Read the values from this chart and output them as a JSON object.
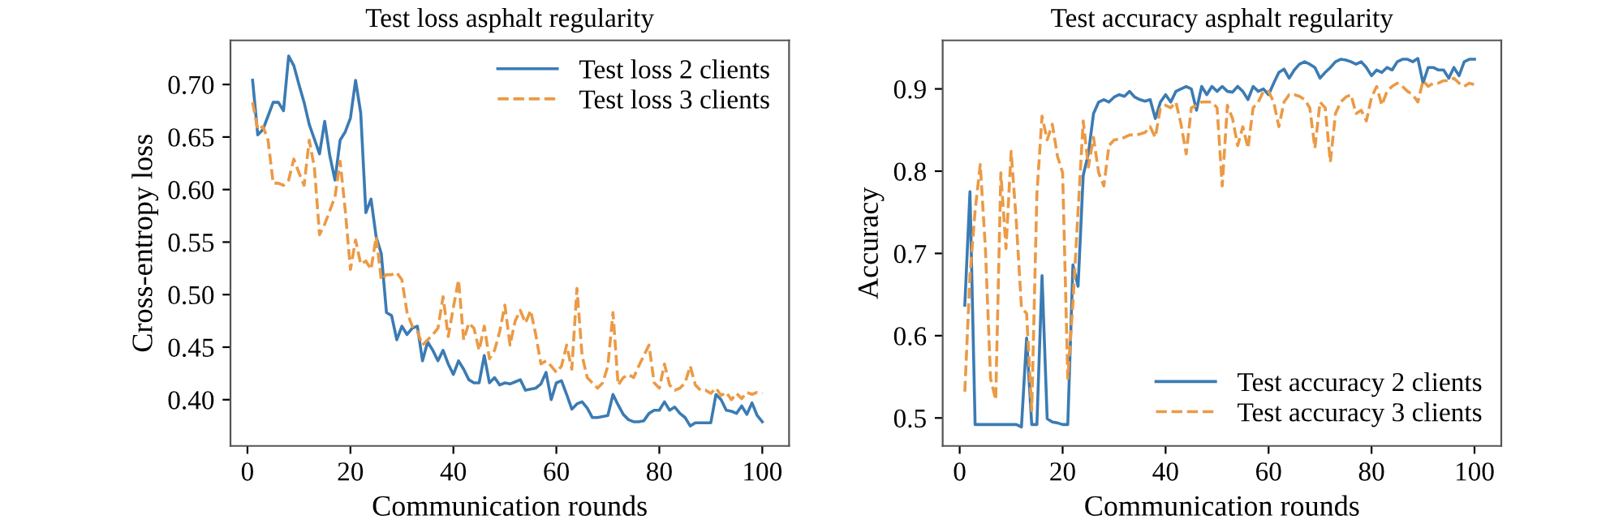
{
  "chart_data": [
    {
      "type": "line",
      "title": "Test loss asphalt regularity",
      "xlabel": "Communication rounds",
      "ylabel": "Cross-entropy loss",
      "x": [
        1,
        2,
        3,
        4,
        5,
        6,
        7,
        8,
        9,
        10,
        11,
        12,
        13,
        14,
        15,
        16,
        17,
        18,
        19,
        20,
        21,
        22,
        23,
        24,
        25,
        26,
        27,
        28,
        29,
        30,
        31,
        32,
        33,
        34,
        35,
        36,
        37,
        38,
        39,
        40,
        41,
        42,
        43,
        44,
        45,
        46,
        47,
        48,
        49,
        50,
        51,
        52,
        53,
        54,
        55,
        56,
        57,
        58,
        59,
        60,
        61,
        62,
        63,
        64,
        65,
        66,
        67,
        68,
        69,
        70,
        71,
        72,
        73,
        74,
        75,
        76,
        77,
        78,
        79,
        80,
        81,
        82,
        83,
        84,
        85,
        86,
        87,
        88,
        89,
        90,
        91,
        92,
        93,
        94,
        95,
        96,
        97,
        98,
        99,
        100
      ],
      "xlim": [
        -3.3,
        105.2
      ],
      "xticks": [
        0,
        20,
        40,
        60,
        80,
        100
      ],
      "ylim": [
        0.356,
        0.742
      ],
      "yticks": [
        {
          "value": 0.4,
          "label": "0.40"
        },
        {
          "value": 0.45,
          "label": "0.45"
        },
        {
          "value": 0.5,
          "label": "0.50"
        },
        {
          "value": 0.55,
          "label": "0.55"
        },
        {
          "value": 0.6,
          "label": "0.60"
        },
        {
          "value": 0.65,
          "label": "0.65"
        },
        {
          "value": 0.7,
          "label": "0.70"
        }
      ],
      "legend": "top right",
      "grid": false,
      "series": [
        {
          "name": "Test loss 2 clients",
          "color": "#3b7bb3",
          "line_style": "solid",
          "values": [
            0.704,
            0.652,
            0.657,
            0.67,
            0.683,
            0.683,
            0.675,
            0.727,
            0.718,
            0.7,
            0.683,
            0.662,
            0.648,
            0.634,
            0.665,
            0.632,
            0.609,
            0.647,
            0.655,
            0.668,
            0.704,
            0.673,
            0.578,
            0.591,
            0.555,
            0.539,
            0.483,
            0.48,
            0.457,
            0.47,
            0.462,
            0.468,
            0.47,
            0.437,
            0.455,
            0.447,
            0.437,
            0.447,
            0.434,
            0.424,
            0.437,
            0.429,
            0.419,
            0.416,
            0.416,
            0.442,
            0.416,
            0.421,
            0.414,
            0.416,
            0.415,
            0.417,
            0.419,
            0.409,
            0.41,
            0.411,
            0.415,
            0.426,
            0.4,
            0.416,
            0.418,
            0.405,
            0.391,
            0.396,
            0.398,
            0.392,
            0.383,
            0.383,
            0.384,
            0.385,
            0.405,
            0.395,
            0.386,
            0.381,
            0.379,
            0.379,
            0.38,
            0.387,
            0.39,
            0.39,
            0.398,
            0.39,
            0.393,
            0.387,
            0.383,
            0.375,
            0.378,
            0.378,
            0.378,
            0.378,
            0.405,
            0.4,
            0.39,
            0.389,
            0.387,
            0.394,
            0.386,
            0.397,
            0.385,
            0.379
          ]
        },
        {
          "name": "Test loss 3 clients",
          "color": "#eb9a45",
          "line_style": "dashed",
          "values": [
            0.683,
            0.657,
            0.66,
            0.647,
            0.606,
            0.606,
            0.604,
            0.609,
            0.629,
            0.616,
            0.604,
            0.647,
            0.621,
            0.557,
            0.567,
            0.58,
            0.593,
            0.627,
            0.58,
            0.524,
            0.552,
            0.529,
            0.532,
            0.524,
            0.555,
            0.514,
            0.519,
            0.519,
            0.521,
            0.514,
            0.483,
            0.47,
            0.465,
            0.452,
            0.457,
            0.462,
            0.468,
            0.498,
            0.46,
            0.488,
            0.514,
            0.457,
            0.473,
            0.468,
            0.447,
            0.47,
            0.439,
            0.447,
            0.465,
            0.49,
            0.452,
            0.475,
            0.485,
            0.473,
            0.485,
            0.462,
            0.434,
            0.437,
            0.432,
            0.426,
            0.432,
            0.452,
            0.429,
            0.506,
            0.442,
            0.421,
            0.416,
            0.411,
            0.416,
            0.432,
            0.483,
            0.414,
            0.421,
            0.424,
            0.421,
            0.432,
            0.442,
            0.452,
            0.416,
            0.411,
            0.434,
            0.414,
            0.409,
            0.411,
            0.416,
            0.432,
            0.414,
            0.409,
            0.409,
            0.406,
            0.411,
            0.404,
            0.407,
            0.4,
            0.406,
            0.401,
            0.407,
            0.405,
            0.407,
            0.406
          ]
        }
      ]
    },
    {
      "type": "line",
      "title": "Test accuracy asphalt regularity",
      "xlabel": "Communication rounds",
      "ylabel": "Accuracy",
      "x": [
        1,
        2,
        3,
        4,
        5,
        6,
        7,
        8,
        9,
        10,
        11,
        12,
        13,
        14,
        15,
        16,
        17,
        18,
        19,
        20,
        21,
        22,
        23,
        24,
        25,
        26,
        27,
        28,
        29,
        30,
        31,
        32,
        33,
        34,
        35,
        36,
        37,
        38,
        39,
        40,
        41,
        42,
        43,
        44,
        45,
        46,
        47,
        48,
        49,
        50,
        51,
        52,
        53,
        54,
        55,
        56,
        57,
        58,
        59,
        60,
        61,
        62,
        63,
        64,
        65,
        66,
        67,
        68,
        69,
        70,
        71,
        72,
        73,
        74,
        75,
        76,
        77,
        78,
        79,
        80,
        81,
        82,
        83,
        84,
        85,
        86,
        87,
        88,
        89,
        90,
        91,
        92,
        93,
        94,
        95,
        96,
        97,
        98,
        99,
        100
      ],
      "xlim": [
        -3.3,
        105.2
      ],
      "xticks": [
        0,
        20,
        40,
        60,
        80,
        100
      ],
      "ylim": [
        0.466,
        0.959
      ],
      "yticks": [
        0.5,
        0.6,
        0.7,
        0.8,
        0.9
      ],
      "legend": "bottom right",
      "grid": false,
      "series": [
        {
          "name": "Test accuracy 2 clients",
          "color": "#3b7bb3",
          "line_style": "solid",
          "values": [
            0.637,
            0.775,
            0.492,
            0.492,
            0.492,
            0.492,
            0.492,
            0.492,
            0.492,
            0.492,
            0.492,
            0.489,
            0.597,
            0.492,
            0.492,
            0.673,
            0.499,
            0.495,
            0.494,
            0.492,
            0.492,
            0.686,
            0.66,
            0.795,
            0.821,
            0.87,
            0.884,
            0.887,
            0.884,
            0.89,
            0.893,
            0.891,
            0.897,
            0.89,
            0.887,
            0.885,
            0.887,
            0.864,
            0.884,
            0.893,
            0.884,
            0.897,
            0.9,
            0.903,
            0.9,
            0.874,
            0.903,
            0.893,
            0.903,
            0.897,
            0.903,
            0.897,
            0.896,
            0.903,
            0.897,
            0.887,
            0.903,
            0.897,
            0.9,
            0.893,
            0.907,
            0.92,
            0.924,
            0.913,
            0.923,
            0.93,
            0.933,
            0.93,
            0.926,
            0.913,
            0.92,
            0.926,
            0.933,
            0.936,
            0.935,
            0.933,
            0.93,
            0.933,
            0.926,
            0.916,
            0.923,
            0.92,
            0.926,
            0.923,
            0.933,
            0.936,
            0.936,
            0.933,
            0.937,
            0.907,
            0.926,
            0.926,
            0.923,
            0.923,
            0.913,
            0.926,
            0.916,
            0.933,
            0.936,
            0.936
          ]
        },
        {
          "name": "Test accuracy 3 clients",
          "color": "#eb9a45",
          "line_style": "dashed",
          "values": [
            0.532,
            0.673,
            0.752,
            0.808,
            0.706,
            0.548,
            0.522,
            0.798,
            0.706,
            0.824,
            0.739,
            0.634,
            0.627,
            0.509,
            0.772,
            0.867,
            0.838,
            0.857,
            0.818,
            0.798,
            0.548,
            0.64,
            0.752,
            0.861,
            0.805,
            0.841,
            0.798,
            0.782,
            0.831,
            0.838,
            0.839,
            0.841,
            0.844,
            0.844,
            0.845,
            0.847,
            0.854,
            0.841,
            0.877,
            0.88,
            0.877,
            0.884,
            0.857,
            0.821,
            0.877,
            0.88,
            0.884,
            0.884,
            0.884,
            0.877,
            0.782,
            0.88,
            0.864,
            0.831,
            0.854,
            0.828,
            0.877,
            0.884,
            0.897,
            0.897,
            0.884,
            0.854,
            0.884,
            0.893,
            0.893,
            0.891,
            0.887,
            0.877,
            0.828,
            0.884,
            0.877,
            0.811,
            0.87,
            0.884,
            0.89,
            0.893,
            0.87,
            0.874,
            0.861,
            0.89,
            0.903,
            0.88,
            0.897,
            0.903,
            0.907,
            0.903,
            0.897,
            0.893,
            0.884,
            0.91,
            0.903,
            0.907,
            0.907,
            0.91,
            0.91,
            0.913,
            0.907,
            0.903,
            0.907,
            0.905
          ]
        }
      ]
    }
  ]
}
